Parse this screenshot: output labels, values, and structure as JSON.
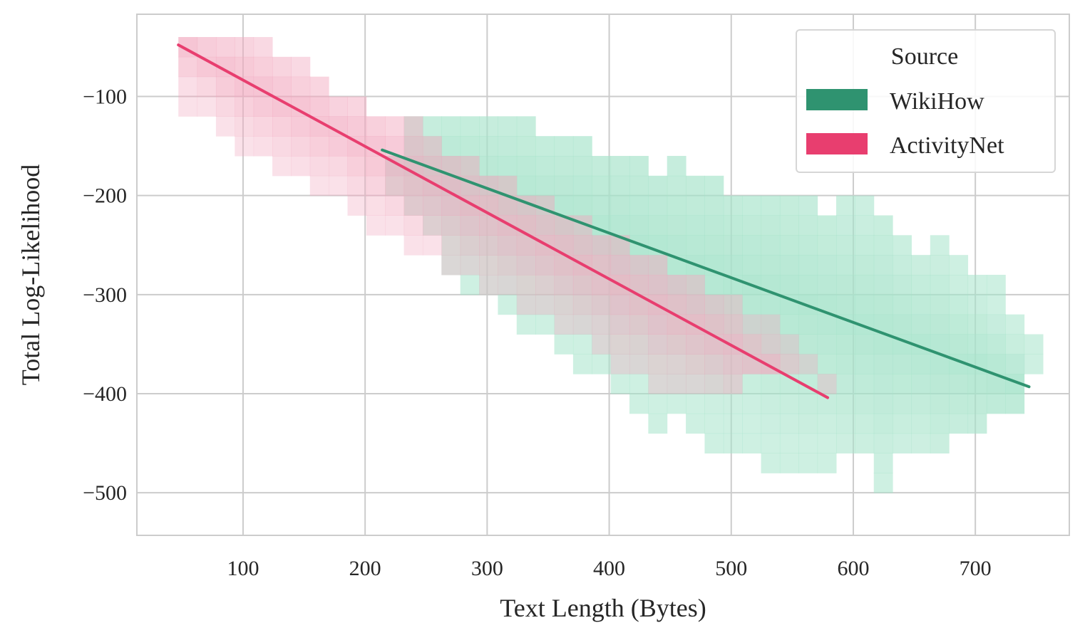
{
  "chart_data": {
    "type": "heatmap",
    "subtype": "2d-histogram with linear regression lines",
    "title": "",
    "xlabel": "Text Length (Bytes)",
    "ylabel": "Total Log-Likelihood",
    "xlim": [
      13,
      777
    ],
    "ylim": [
      -543,
      -17
    ],
    "xticks": [
      100,
      200,
      300,
      400,
      500,
      600,
      700
    ],
    "yticks": [
      -100,
      -200,
      -300,
      -400,
      -500
    ],
    "xtick_labels": [
      "100",
      "200",
      "300",
      "400",
      "500",
      "600",
      "700"
    ],
    "ytick_labels": [
      "−100",
      "−200",
      "−300",
      "−400",
      "−500"
    ],
    "grid": true,
    "legend": {
      "title": "Source",
      "placement": "top-right",
      "entries": [
        "WikiHow",
        "ActivityNet"
      ]
    },
    "bin_width": 15.4,
    "bin_height": 20,
    "bin_x0": 47,
    "series": [
      {
        "name": "WikiHow",
        "color": "#2f9370",
        "cell_color": "#a6e3ca",
        "regression": {
          "x": [
            214,
            744
          ],
          "y": [
            -154,
            -393
          ]
        },
        "columns_first_bin": 11,
        "columns_y_ranges": [
          [
            -160,
            -200
          ],
          [
            -120,
            -220
          ],
          [
            -120,
            -240
          ],
          [
            -120,
            -280
          ],
          [
            -120,
            -300
          ],
          [
            -120,
            -300
          ],
          [
            -120,
            -320
          ],
          [
            -120,
            -340
          ],
          [
            -140,
            -340
          ],
          [
            -140,
            -360
          ],
          [
            -140,
            -380
          ],
          [
            -160,
            -380
          ],
          [
            -160,
            -400
          ],
          [
            -160,
            -420
          ],
          [
            -180,
            -440
          ],
          [
            -160,
            -420
          ],
          [
            -180,
            -440
          ],
          [
            -180,
            -460
          ],
          [
            -200,
            -460
          ],
          [
            -200,
            -460
          ],
          [
            -200,
            -480
          ],
          [
            -200,
            -480
          ],
          [
            -200,
            -480
          ],
          [
            -220,
            -480
          ],
          [
            -200,
            -460
          ],
          [
            -200,
            -460
          ],
          [
            -220,
            -500
          ],
          [
            -240,
            -460
          ],
          [
            -260,
            -460
          ],
          [
            -240,
            -460
          ],
          [
            -260,
            -440
          ],
          [
            -280,
            -440
          ],
          [
            -280,
            -420
          ],
          [
            -320,
            -420
          ],
          [
            -340,
            -380
          ]
        ]
      },
      {
        "name": "ActivityNet",
        "color": "#e83e6f",
        "cell_color": "#f2a9bf",
        "regression": {
          "x": [
            47,
            579
          ],
          "y": [
            -48,
            -404
          ]
        },
        "columns_first_bin": 0,
        "columns_y_ranges": [
          [
            -40,
            -120
          ],
          [
            -40,
            -120
          ],
          [
            -40,
            -140
          ],
          [
            -40,
            -160
          ],
          [
            -40,
            -160
          ],
          [
            -60,
            -180
          ],
          [
            -60,
            -180
          ],
          [
            -80,
            -200
          ],
          [
            -100,
            -200
          ],
          [
            -100,
            -220
          ],
          [
            -120,
            -240
          ],
          [
            -120,
            -240
          ],
          [
            -120,
            -260
          ],
          [
            -140,
            -260
          ],
          [
            -160,
            -280
          ],
          [
            -160,
            -280
          ],
          [
            -180,
            -300
          ],
          [
            -180,
            -300
          ],
          [
            -200,
            -320
          ],
          [
            -200,
            -320
          ],
          [
            -220,
            -340
          ],
          [
            -220,
            -340
          ],
          [
            -240,
            -360
          ],
          [
            -240,
            -380
          ],
          [
            -260,
            -380
          ],
          [
            -260,
            -400
          ],
          [
            -280,
            -400
          ],
          [
            -280,
            -400
          ],
          [
            -300,
            -400
          ],
          [
            -300,
            -400
          ],
          [
            -320,
            -380
          ],
          [
            -320,
            -380
          ],
          [
            -340,
            -380
          ],
          [
            -360,
            -380
          ],
          [
            -380,
            -400
          ]
        ]
      }
    ]
  }
}
